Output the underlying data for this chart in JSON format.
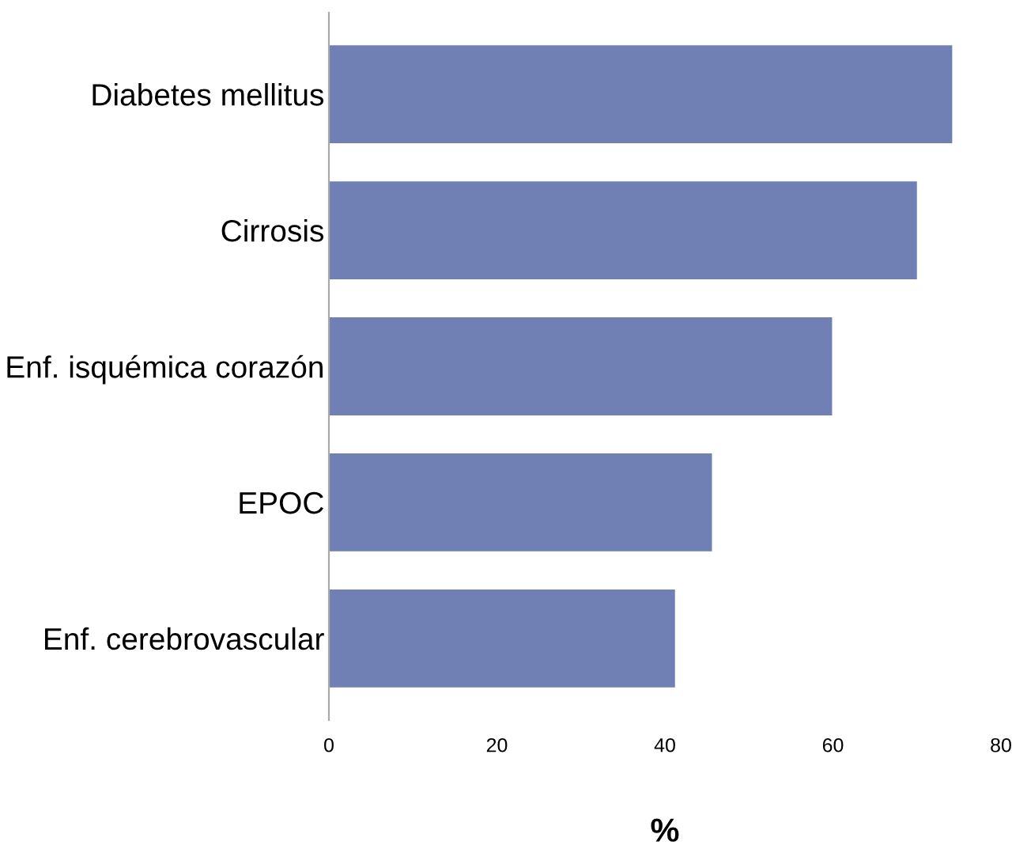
{
  "chart_data": {
    "type": "bar",
    "orientation": "horizontal",
    "xlabel": "%",
    "categories": [
      "Diabetes mellitus",
      "Cirrosis",
      "Enf. isquémica corazón",
      "EPOC",
      "Enf. cerebrovascular"
    ],
    "values": [
      74.2,
      70,
      59.9,
      45.6,
      41.2
    ],
    "color": "#7180b4",
    "xlim": [
      0,
      80
    ],
    "xticks": [
      0,
      20,
      40,
      60,
      80
    ],
    "grid": false,
    "legend": false
  }
}
